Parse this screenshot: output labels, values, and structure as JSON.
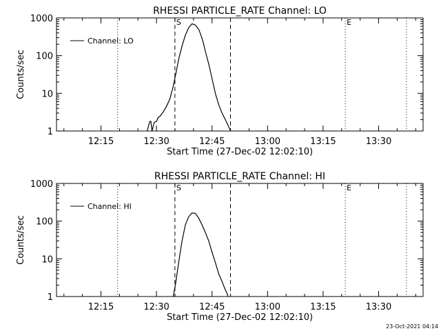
{
  "chart_data": [
    {
      "type": "line",
      "title": "RHESSI PARTICLE_RATE Channel: LO",
      "xlabel": "Start Time (27-Dec-02 12:02:10)",
      "ylabel": "Counts/sec",
      "yscale": "log",
      "ylim": [
        1,
        1000
      ],
      "xlim": [
        12.05,
        13.7
      ],
      "x_tick_labels": [
        "12:15",
        "12:30",
        "12:45",
        "13:00",
        "13:15",
        "13:30"
      ],
      "x_tick_values": [
        12.25,
        12.5,
        12.75,
        13.0,
        13.25,
        13.5
      ],
      "y_tick_labels": [
        "1",
        "10",
        "100",
        "1000"
      ],
      "y_tick_values": [
        1,
        10,
        100,
        1000
      ],
      "legend": "Channel: LO",
      "markers": [
        {
          "label": "S",
          "x": 12.583,
          "style": "dashed"
        },
        {
          "label": "",
          "x": 12.833,
          "style": "dashed"
        },
        {
          "label": "E",
          "x": 13.35,
          "style": "dotted"
        },
        {
          "label": "",
          "x": 12.325,
          "style": "dotted"
        },
        {
          "label": "",
          "x": 13.625,
          "style": "dotted"
        }
      ],
      "series": [
        {
          "name": "Channel: LO",
          "x": [
            12.458,
            12.47,
            12.475,
            12.48,
            12.49,
            12.5,
            12.508,
            12.517,
            12.53,
            12.545,
            12.56,
            12.575,
            12.59,
            12.6,
            12.615,
            12.63,
            12.645,
            12.66,
            12.675,
            12.69,
            12.7,
            12.71,
            12.72,
            12.735,
            12.75,
            12.765,
            12.78,
            12.795,
            12.81,
            12.82,
            12.828,
            12.833
          ],
          "y": [
            1,
            1.8,
            1.8,
            1,
            1.7,
            1.8,
            2.3,
            2.5,
            3.2,
            4.5,
            7,
            15,
            40,
            80,
            180,
            350,
            550,
            700,
            650,
            500,
            350,
            230,
            130,
            60,
            25,
            10,
            5,
            3,
            2,
            1.5,
            1.2,
            1
          ]
        }
      ]
    },
    {
      "type": "line",
      "title": "RHESSI PARTICLE_RATE Channel: HI",
      "xlabel": "Start Time (27-Dec-02 12:02:10)",
      "ylabel": "Counts/sec",
      "yscale": "log",
      "ylim": [
        1,
        1000
      ],
      "xlim": [
        12.05,
        13.7
      ],
      "x_tick_labels": [
        "12:15",
        "12:30",
        "12:45",
        "13:00",
        "13:15",
        "13:30"
      ],
      "x_tick_values": [
        12.25,
        12.5,
        12.75,
        13.0,
        13.25,
        13.5
      ],
      "y_tick_labels": [
        "1",
        "10",
        "100",
        "1000"
      ],
      "y_tick_values": [
        1,
        10,
        100,
        1000
      ],
      "legend": "Channel: HI",
      "markers": [
        {
          "label": "S",
          "x": 12.583,
          "style": "dashed"
        },
        {
          "label": "",
          "x": 12.833,
          "style": "dashed"
        },
        {
          "label": "E",
          "x": 13.35,
          "style": "dotted"
        },
        {
          "label": "",
          "x": 12.325,
          "style": "dotted"
        },
        {
          "label": "",
          "x": 13.625,
          "style": "dotted"
        }
      ],
      "series": [
        {
          "name": "Channel: HI",
          "x": [
            12.575,
            12.585,
            12.6,
            12.615,
            12.63,
            12.645,
            12.66,
            12.675,
            12.69,
            12.705,
            12.72,
            12.735,
            12.75,
            12.765,
            12.78,
            12.795,
            12.81,
            12.818,
            12.822
          ],
          "y": [
            1,
            2,
            8,
            30,
            80,
            130,
            165,
            160,
            120,
            80,
            50,
            30,
            15,
            8,
            4,
            2.5,
            1.5,
            1.2,
            1
          ]
        }
      ]
    }
  ],
  "timestamp": "23-Oct-2021 04:14"
}
